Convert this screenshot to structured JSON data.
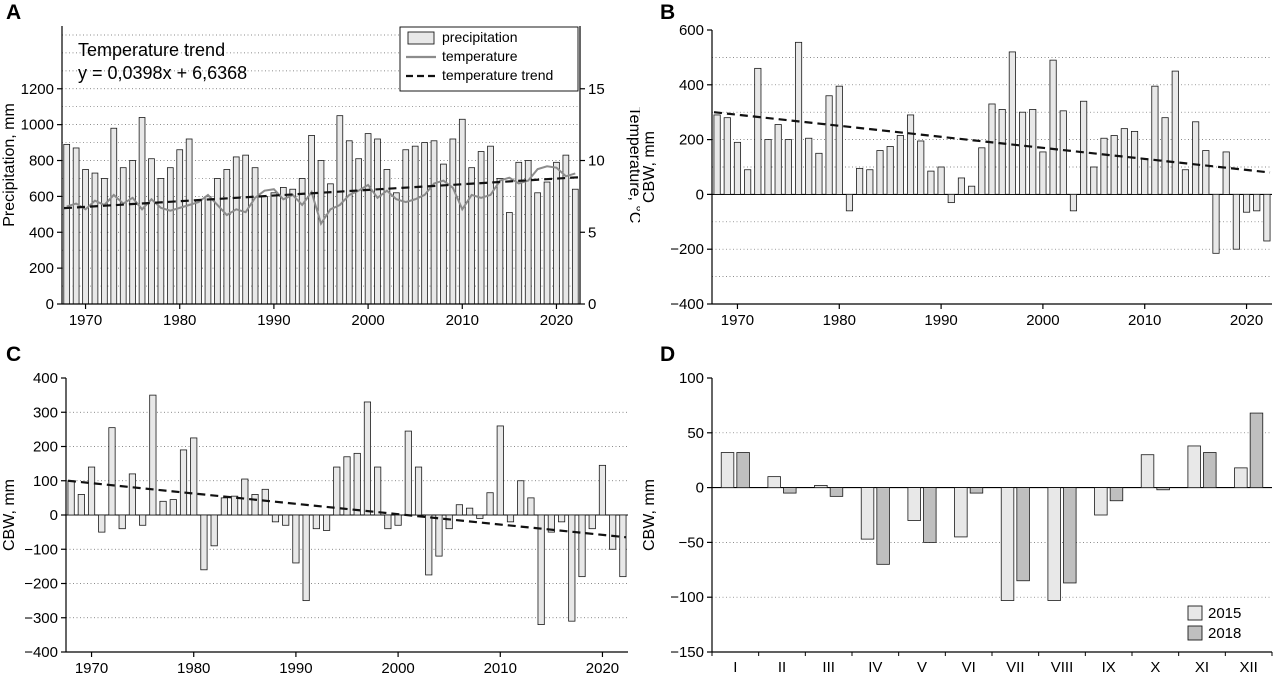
{
  "colors": {
    "bar_fill": "#e8e8e8",
    "bar2_fill": "#bfbfbf",
    "bar_stroke": "#1a1a1a",
    "line": "#8c8c8c",
    "trend": "#111111"
  },
  "chart_data": [
    {
      "panel": "A",
      "type": "bar",
      "margins": [
        62,
        26,
        60,
        38
      ],
      "panel_x": 6,
      "x_start": 1968,
      "xticks": [
        1970,
        1980,
        1990,
        2000,
        2010,
        2020
      ],
      "ylabel": "Precipitation, mm",
      "ylim": [
        0,
        1550
      ],
      "yticks": [
        0,
        200,
        400,
        600,
        800,
        1000,
        1200
      ],
      "grid": 100,
      "y2label": "Temperature, °C",
      "y2lim": [
        0,
        19.375
      ],
      "y2ticks": [
        0,
        5,
        10,
        15
      ],
      "bars": [
        890,
        870,
        750,
        730,
        700,
        980,
        760,
        800,
        1040,
        810,
        700,
        760,
        860,
        920,
        580,
        600,
        700,
        750,
        820,
        830,
        760,
        600,
        620,
        650,
        640,
        700,
        940,
        800,
        670,
        1050,
        910,
        810,
        950,
        920,
        750,
        620,
        860,
        880,
        900,
        910,
        780,
        920,
        1030,
        760,
        850,
        880,
        700,
        510,
        790,
        800,
        620,
        680,
        790,
        830,
        640
      ],
      "line": {
        "name": "temperature",
        "values": [
          6.8,
          7.0,
          6.6,
          7.2,
          6.9,
          7.6,
          7.0,
          7.4,
          6.6,
          7.3,
          6.7,
          6.5,
          6.7,
          6.9,
          7.1,
          7.6,
          6.9,
          6.2,
          6.6,
          6.4,
          7.4,
          7.9,
          8.0,
          7.3,
          7.6,
          6.9,
          7.8,
          5.6,
          6.6,
          6.9,
          7.6,
          7.9,
          8.3,
          7.4,
          7.9,
          7.3,
          7.1,
          7.3,
          7.6,
          8.4,
          8.6,
          8.1,
          6.6,
          7.6,
          7.4,
          7.6,
          8.6,
          8.8,
          8.4,
          8.6,
          9.4,
          9.6,
          9.5,
          8.9,
          9.1
        ]
      },
      "trend": {
        "name": "temperature trend",
        "axis": 2,
        "start": 6.68,
        "end": 8.83,
        "equation": "y = 0,0398x + 6,6368"
      },
      "annotation": [
        "Temperature trend",
        "y = 0,0398x + 6,6368"
      ],
      "legend": {
        "position": "top-right",
        "items": [
          {
            "swatch": "bar",
            "label": "precipitation"
          },
          {
            "swatch": "line",
            "label": "temperature"
          },
          {
            "swatch": "dash",
            "label": "temperature trend"
          }
        ]
      }
    },
    {
      "panel": "B",
      "type": "bar",
      "margins": [
        72,
        30,
        8,
        38
      ],
      "panel_x": 20,
      "x_start": 1968,
      "xticks": [
        1970,
        1980,
        1990,
        2000,
        2010,
        2020
      ],
      "ylabel": "CBW, mm",
      "ylim": [
        -400,
        600
      ],
      "yticks": [
        -400,
        -200,
        0,
        200,
        400,
        600
      ],
      "grid": 100,
      "bars": [
        290,
        280,
        190,
        90,
        460,
        200,
        255,
        200,
        555,
        205,
        150,
        360,
        395,
        -60,
        95,
        90,
        160,
        175,
        215,
        290,
        195,
        85,
        100,
        -30,
        60,
        30,
        170,
        330,
        310,
        520,
        300,
        310,
        155,
        490,
        305,
        -60,
        340,
        100,
        205,
        215,
        240,
        230,
        130,
        395,
        280,
        450,
        90,
        265,
        160,
        -215,
        155,
        -200,
        -65,
        -60,
        -170
      ],
      "trend": {
        "name": "CBW trend",
        "axis": 1,
        "start": 300,
        "end": 80
      }
    },
    {
      "panel": "C",
      "type": "bar",
      "margins": [
        66,
        36,
        12,
        26
      ],
      "panel_x": 6,
      "x_start": 1968,
      "xticks": [
        1970,
        1980,
        1990,
        2000,
        2010,
        2020
      ],
      "ylabel": "CBW, mm",
      "ylim": [
        -400,
        400
      ],
      "yticks": [
        -400,
        -300,
        -200,
        -100,
        0,
        100,
        200,
        300,
        400
      ],
      "grid": 100,
      "bars": [
        100,
        60,
        140,
        -50,
        255,
        -40,
        120,
        -30,
        350,
        40,
        45,
        190,
        225,
        -160,
        -90,
        50,
        55,
        105,
        60,
        75,
        -20,
        -30,
        -140,
        -250,
        -40,
        -45,
        140,
        170,
        180,
        330,
        140,
        -40,
        -30,
        245,
        140,
        -175,
        -120,
        -40,
        30,
        20,
        -10,
        65,
        260,
        -20,
        100,
        50,
        -320,
        -50,
        -20,
        -310,
        -180,
        -40,
        145,
        -100,
        -180
      ],
      "trend": {
        "name": "CBW trend",
        "axis": 1,
        "start": 100,
        "end": -65
      }
    },
    {
      "panel": "D",
      "type": "grouped-bar",
      "margins": [
        72,
        36,
        8,
        26
      ],
      "panel_x": 20,
      "categories": [
        "I",
        "II",
        "III",
        "IV",
        "V",
        "VI",
        "VII",
        "VIII",
        "IX",
        "X",
        "XI",
        "XII"
      ],
      "ylabel": "CBW, mm",
      "ylim": [
        -150,
        100
      ],
      "yticks": [
        -150,
        -100,
        -50,
        0,
        50,
        100
      ],
      "grid": 50,
      "series": [
        {
          "name": "2015",
          "values": [
            32,
            10,
            2,
            -47,
            -30,
            -45,
            -103,
            -103,
            -25,
            30,
            38,
            18
          ]
        },
        {
          "name": "2018",
          "values": [
            32,
            -5,
            -8,
            -70,
            -50,
            -5,
            -85,
            -87,
            -12,
            -2,
            32,
            68
          ]
        }
      ],
      "legend": {
        "position": "bottom-right",
        "items": [
          {
            "swatch": "bar",
            "label": "2015"
          },
          {
            "swatch": "bar2",
            "label": "2018"
          }
        ]
      }
    }
  ]
}
